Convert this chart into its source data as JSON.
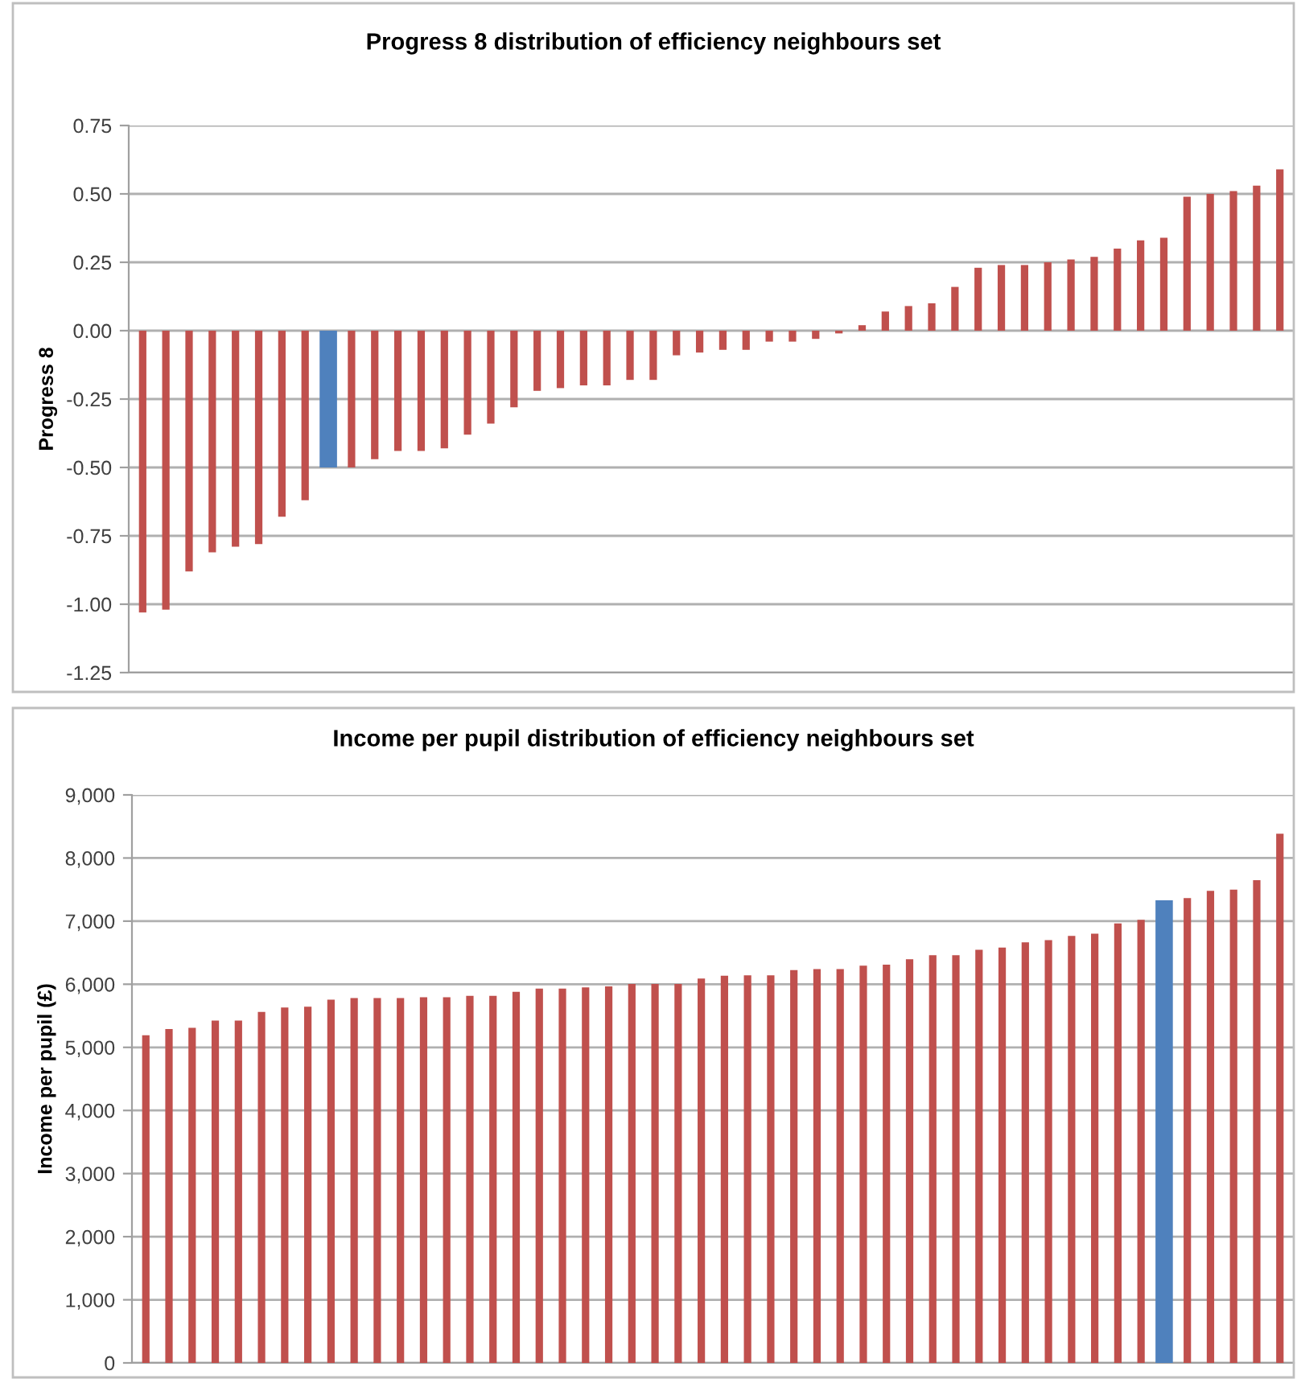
{
  "chart_data": [
    {
      "type": "bar",
      "title": "Progress 8 distribution of efficiency neighbours set",
      "ylabel": "Progress 8",
      "categories": [
        null,
        null,
        null,
        null,
        null,
        null,
        null,
        null,
        null,
        null,
        null,
        null,
        null,
        null,
        null,
        null,
        null,
        null,
        null,
        null,
        null,
        null,
        null,
        null,
        null,
        null,
        null,
        null,
        null,
        null,
        null,
        null,
        null,
        null,
        null,
        null,
        null,
        null,
        null,
        null,
        null,
        null,
        null,
        null,
        null,
        null,
        null,
        null,
        null,
        null
      ],
      "values": [
        -1.03,
        -1.02,
        -0.88,
        -0.81,
        -0.79,
        -0.78,
        -0.68,
        -0.62,
        -0.5,
        -0.5,
        -0.47,
        -0.44,
        -0.44,
        -0.43,
        -0.38,
        -0.34,
        -0.28,
        -0.22,
        -0.21,
        -0.2,
        -0.2,
        -0.18,
        -0.18,
        -0.09,
        -0.08,
        -0.07,
        -0.07,
        -0.04,
        -0.04,
        -0.03,
        -0.01,
        0.02,
        0.07,
        0.09,
        0.1,
        0.16,
        0.23,
        0.24,
        0.24,
        0.25,
        0.26,
        0.27,
        0.3,
        0.33,
        0.34,
        0.49,
        0.5,
        0.51,
        0.53,
        0.59
      ],
      "colors": [
        "#c0504d",
        "#c0504d",
        "#c0504d",
        "#c0504d",
        "#c0504d",
        "#c0504d",
        "#c0504d",
        "#c0504d",
        "#4f81bd",
        "#c0504d",
        "#c0504d",
        "#c0504d",
        "#c0504d",
        "#c0504d",
        "#c0504d",
        "#c0504d",
        "#c0504d",
        "#c0504d",
        "#c0504d",
        "#c0504d",
        "#c0504d",
        "#c0504d",
        "#c0504d",
        "#c0504d",
        "#c0504d",
        "#c0504d",
        "#c0504d",
        "#c0504d",
        "#c0504d",
        "#c0504d",
        "#c0504d",
        "#c0504d",
        "#c0504d",
        "#c0504d",
        "#c0504d",
        "#c0504d",
        "#c0504d",
        "#c0504d",
        "#c0504d",
        "#c0504d",
        "#c0504d",
        "#c0504d",
        "#c0504d",
        "#c0504d",
        "#c0504d",
        "#c0504d",
        "#c0504d",
        "#c0504d",
        "#c0504d",
        "#c0504d"
      ],
      "ylim": [
        -1.25,
        0.75
      ],
      "yticks": [
        {
          "value": -1.25,
          "label": "-1.25"
        },
        {
          "value": -1.0,
          "label": "-1.00"
        },
        {
          "value": -0.75,
          "label": "-0.75"
        },
        {
          "value": -0.5,
          "label": "-0.50"
        },
        {
          "value": -0.25,
          "label": "-0.25"
        },
        {
          "value": 0,
          "label": "0.00"
        },
        {
          "value": 0.25,
          "label": "0.25"
        },
        {
          "value": 0.5,
          "label": "0.50"
        },
        {
          "value": 0.75,
          "label": "0.75"
        }
      ],
      "grid": "y",
      "legend": false
    },
    {
      "type": "bar",
      "title": "Income per pupil distribution of efficiency neighbours set",
      "ylabel": "Income per pupil (£)",
      "categories": [
        null,
        null,
        null,
        null,
        null,
        null,
        null,
        null,
        null,
        null,
        null,
        null,
        null,
        null,
        null,
        null,
        null,
        null,
        null,
        null,
        null,
        null,
        null,
        null,
        null,
        null,
        null,
        null,
        null,
        null,
        null,
        null,
        null,
        null,
        null,
        null,
        null,
        null,
        null,
        null,
        null,
        null,
        null,
        null,
        null,
        null,
        null,
        null,
        null,
        null
      ],
      "values": [
        5190,
        5290,
        5310,
        5425,
        5425,
        5560,
        5630,
        5645,
        5755,
        5780,
        5780,
        5780,
        5795,
        5795,
        5815,
        5815,
        5880,
        5930,
        5930,
        5950,
        5965,
        6005,
        6005,
        6005,
        6090,
        6135,
        6140,
        6140,
        6225,
        6240,
        6240,
        6295,
        6310,
        6395,
        6460,
        6460,
        6545,
        6580,
        6665,
        6700,
        6765,
        6800,
        6965,
        7020,
        7330,
        7365,
        7480,
        7500,
        7650,
        8385
      ],
      "colors": [
        "#c0504d",
        "#c0504d",
        "#c0504d",
        "#c0504d",
        "#c0504d",
        "#c0504d",
        "#c0504d",
        "#c0504d",
        "#c0504d",
        "#c0504d",
        "#c0504d",
        "#c0504d",
        "#c0504d",
        "#c0504d",
        "#c0504d",
        "#c0504d",
        "#c0504d",
        "#c0504d",
        "#c0504d",
        "#c0504d",
        "#c0504d",
        "#c0504d",
        "#c0504d",
        "#c0504d",
        "#c0504d",
        "#c0504d",
        "#c0504d",
        "#c0504d",
        "#c0504d",
        "#c0504d",
        "#c0504d",
        "#c0504d",
        "#c0504d",
        "#c0504d",
        "#c0504d",
        "#c0504d",
        "#c0504d",
        "#c0504d",
        "#c0504d",
        "#c0504d",
        "#c0504d",
        "#c0504d",
        "#c0504d",
        "#c0504d",
        "#4f81bd",
        "#c0504d",
        "#c0504d",
        "#c0504d",
        "#c0504d",
        "#c0504d"
      ],
      "ylim": [
        0,
        9000
      ],
      "yticks": [
        {
          "value": 0,
          "label": "0"
        },
        {
          "value": 1000,
          "label": "1,000"
        },
        {
          "value": 2000,
          "label": "2,000"
        },
        {
          "value": 3000,
          "label": "3,000"
        },
        {
          "value": 4000,
          "label": "4,000"
        },
        {
          "value": 5000,
          "label": "5,000"
        },
        {
          "value": 6000,
          "label": "6,000"
        },
        {
          "value": 7000,
          "label": "7,000"
        },
        {
          "value": 8000,
          "label": "8,000"
        },
        {
          "value": 9000,
          "label": "9,000"
        }
      ],
      "grid": "y",
      "legend": false
    }
  ]
}
